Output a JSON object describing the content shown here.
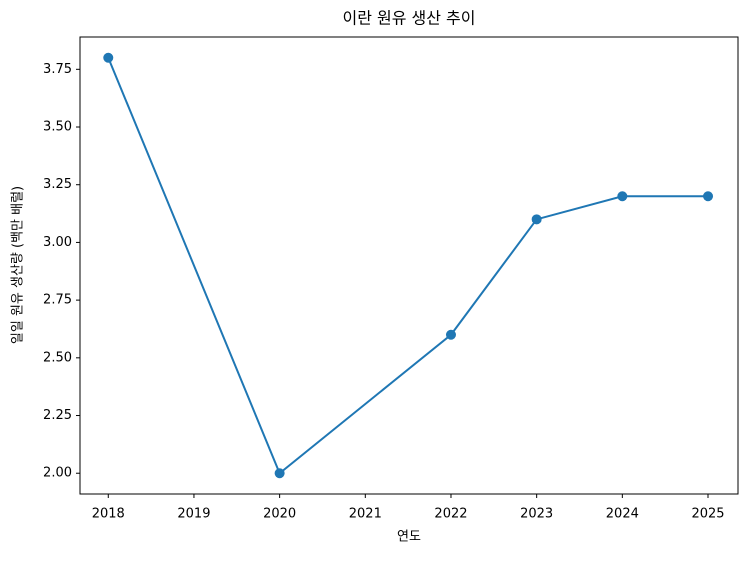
{
  "chart_data": {
    "type": "line",
    "title": "이란 원유 생산 추이",
    "xlabel": "연도",
    "ylabel": "일일 원유 생산량 (백만 배럴)",
    "x": [
      2018,
      2020,
      2022,
      2023,
      2024,
      2025
    ],
    "series": [
      {
        "color": "#1f77b4",
        "values": [
          3.8,
          2.0,
          2.6,
          3.1,
          3.2,
          3.2
        ]
      }
    ],
    "xlim": [
      2017.67,
      2025.35
    ],
    "ylim": [
      1.91,
      3.89
    ],
    "xticks": [
      2018,
      2019,
      2020,
      2021,
      2022,
      2023,
      2024,
      2025
    ],
    "yticks": [
      {
        "value": 2,
        "label": "2.00"
      },
      2.25,
      {
        "value": 2.5,
        "label": "2.50"
      },
      2.75,
      {
        "value": 3,
        "label": "3.00"
      },
      3.25,
      {
        "value": 3.5,
        "label": "3.50"
      },
      3.75
    ]
  }
}
